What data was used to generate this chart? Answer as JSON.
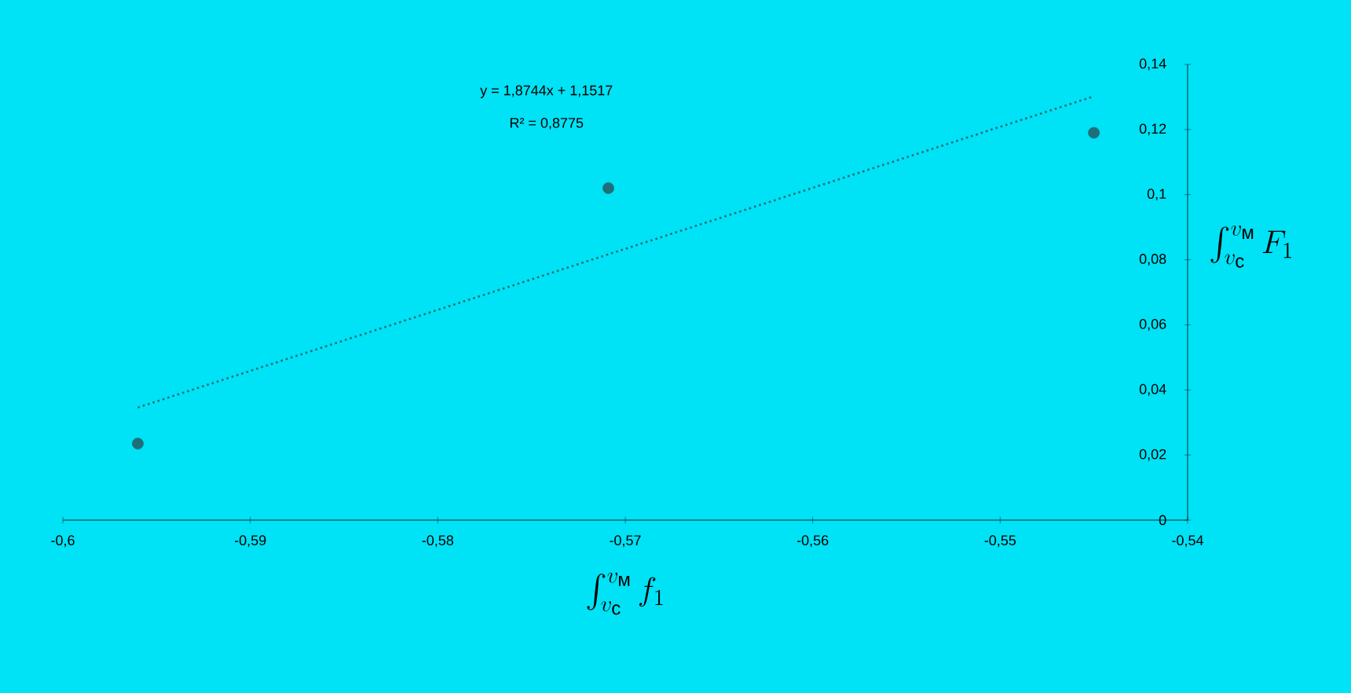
{
  "chart_data": {
    "type": "scatter",
    "xlabel": "\\int_{v_{\\text{с}}}^{v_{\\text{м}}} f_1",
    "ylabel": "\\int_{v_{\\text{с}}}^{v_{\\text{м}}} F_1",
    "xlim": [
      -0.6,
      -0.54
    ],
    "xticks": [
      {
        "value": -0.6,
        "label": "-0,6"
      },
      {
        "value": -0.59,
        "label": "-0,59"
      },
      {
        "value": -0.58,
        "label": "-0,58"
      },
      {
        "value": -0.57,
        "label": "-0,57"
      },
      {
        "value": -0.56,
        "label": "-0,56"
      },
      {
        "value": -0.55,
        "label": "-0,55"
      },
      {
        "value": -0.54,
        "label": "-0,54"
      }
    ],
    "ylim": [
      0,
      0.14
    ],
    "yticks": [
      0,
      {
        "value": 0.02,
        "label": "0,02"
      },
      {
        "value": 0.04,
        "label": "0,04"
      },
      {
        "value": 0.06,
        "label": "0,06"
      },
      {
        "value": 0.08,
        "label": "0,08"
      },
      {
        "value": 0.1,
        "label": "0,1"
      },
      {
        "value": 0.12,
        "label": "0,12"
      },
      {
        "value": 0.14,
        "label": "0,14"
      }
    ],
    "series": [
      {
        "color": "#1f6f7a",
        "marker": "circle",
        "x": [
          -0.596,
          -0.5709,
          -0.545
        ],
        "values": [
          0.0235,
          0.102,
          0.119
        ]
      },
      {
        "type": "line",
        "color": "#1f6f7a",
        "marker": "none",
        "line_style": "dotted",
        "x": [
          -0.596,
          -0.545
        ],
        "values": [
          0.0346,
          0.1302
        ]
      }
    ],
    "annotations": [
      "y = 1,8744x + 1,1517",
      "R² = 0,8775"
    ]
  }
}
